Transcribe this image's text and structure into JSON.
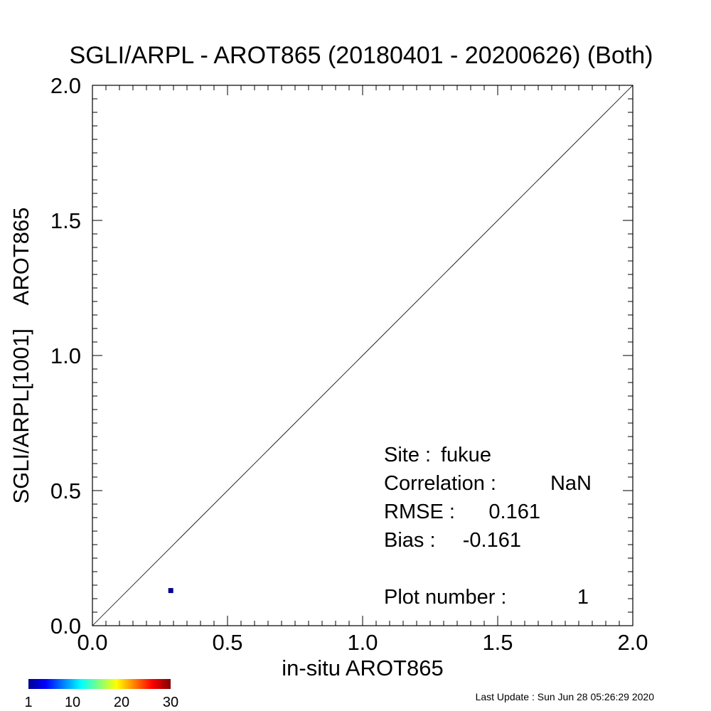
{
  "chart_data": {
    "type": "scatter",
    "title": "SGLI/ARPL - AROT865 (20180401 - 20200626) (Both)",
    "xlabel": "in-situ AROT865",
    "ylabel": "SGLI/ARPL[1001]    AROT865",
    "xlim": [
      0.0,
      2.0
    ],
    "ylim": [
      0.0,
      2.0
    ],
    "x_ticks": [
      0.0,
      0.5,
      1.0,
      1.5,
      2.0
    ],
    "y_ticks": [
      0.0,
      0.5,
      1.0,
      1.5,
      2.0
    ],
    "x_tick_labels": [
      "0.0",
      "0.5",
      "1.0",
      "1.5",
      "2.0"
    ],
    "y_tick_labels": [
      "0.0",
      "0.5",
      "1.0",
      "1.5",
      "2.0"
    ],
    "points": [
      {
        "x": 0.29,
        "y": 0.13,
        "count": 1
      }
    ],
    "point_color": "#00008f",
    "reference_line": {
      "from": [
        0.0,
        0.0
      ],
      "to": [
        2.0,
        2.0
      ]
    },
    "stats": {
      "site_label": "Site :",
      "site_value": "fukue",
      "correlation_label": "Correlation :",
      "correlation_value": "NaN",
      "rmse_label": "RMSE :",
      "rmse_value": "0.161",
      "bias_label": "Bias :",
      "bias_value": "-0.161",
      "plot_number_label": "Plot number :",
      "plot_number_value": "1"
    },
    "colorbar": {
      "tick_labels": [
        "1",
        "10",
        "20",
        "30"
      ],
      "tick_values": [
        1,
        10,
        20,
        30
      ],
      "range": [
        1,
        30
      ],
      "colormap": "jet"
    }
  },
  "footer": {
    "last_update": "Last Update : Sun Jun 28 05:26:29 2020"
  }
}
